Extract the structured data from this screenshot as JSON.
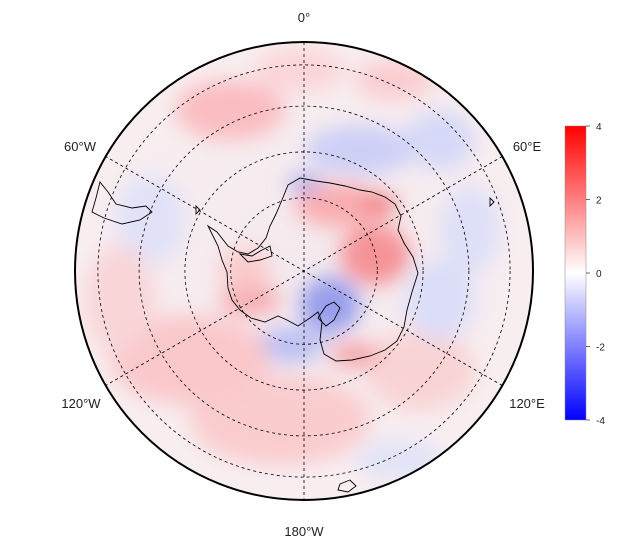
{
  "map": {
    "projection": "south-polar-stereographic",
    "longitude_labels": {
      "top": "0°",
      "upper_left": "60°W",
      "upper_right": "60°E",
      "lower_left": "120°W",
      "lower_right": "120°E",
      "bottom": "180°W"
    },
    "meridian_lines": "dashed, every 60°",
    "latitude_circles": "dashed, 4 rings",
    "colors": {
      "positive": "#ff0000",
      "zero": "#ffffff",
      "negative": "#0000ff",
      "coastline": "#000000",
      "grid": "#000000"
    },
    "anomaly_regions": [
      {
        "sector": "Weddell/0°-30°E",
        "sign": "positive"
      },
      {
        "sector": "30°E-60°E coast",
        "sign": "negative"
      },
      {
        "sector": "East Antarctica interior 60°E-100°E",
        "sign": "positive"
      },
      {
        "sector": "Ross Sea 150°E-180°",
        "sign": "negative"
      },
      {
        "sector": "Pacific 120°W-180°",
        "sign": "positive"
      },
      {
        "sector": "Antarctic Peninsula 60°W-90°W",
        "sign": "positive"
      }
    ]
  },
  "colorbar": {
    "ticks": [
      "4",
      "2",
      "0",
      "-2",
      "-4"
    ],
    "min": -4,
    "max": 4
  }
}
